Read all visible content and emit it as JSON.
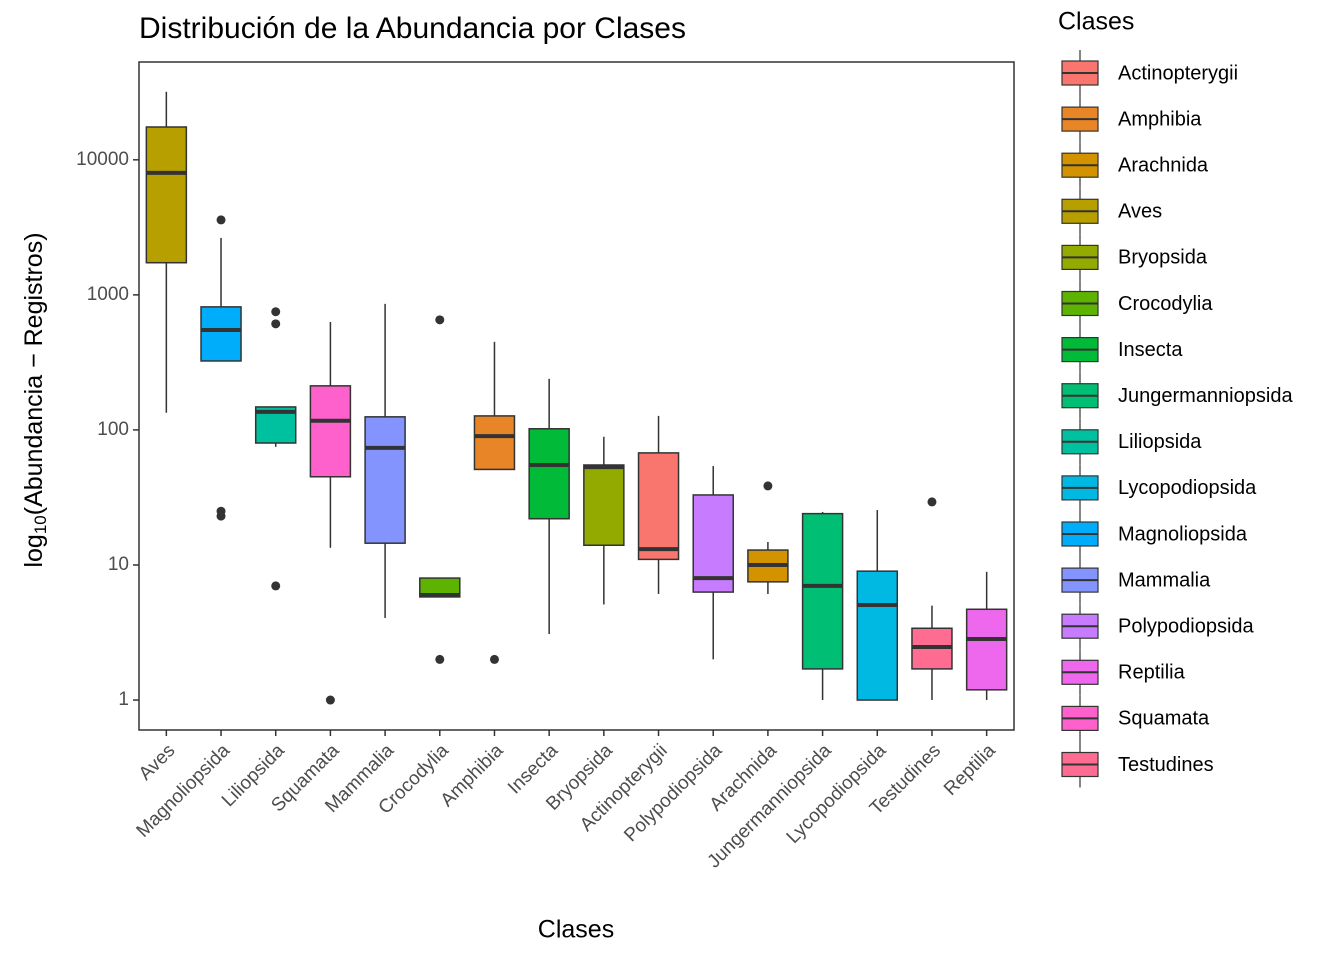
{
  "chart_data": {
    "type": "box",
    "title": "Distribución de la Abundancia por Clases",
    "x_label": "Clases",
    "y_label_parts": [
      "log",
      "10",
      "(Abundancia − Registros)"
    ],
    "log_scale": true,
    "ylim": [
      0.6,
      53000
    ],
    "yticks": [
      1,
      10,
      100,
      1000,
      10000
    ],
    "legend": {
      "title": "Clases",
      "position": "right",
      "entries": [
        {
          "name": "Actinopterygii",
          "color": "#F8766D"
        },
        {
          "name": "Amphibia",
          "color": "#E88526"
        },
        {
          "name": "Arachnida",
          "color": "#D39200"
        },
        {
          "name": "Aves",
          "color": "#B79F00"
        },
        {
          "name": "Bryopsida",
          "color": "#93AA00"
        },
        {
          "name": "Crocodylia",
          "color": "#5EB300"
        },
        {
          "name": "Insecta",
          "color": "#00BA38"
        },
        {
          "name": "Jungermanniopsida",
          "color": "#00BF74"
        },
        {
          "name": "Liliopsida",
          "color": "#00C19F"
        },
        {
          "name": "Lycopodiopsida",
          "color": "#00B9E3"
        },
        {
          "name": "Magnoliopsida",
          "color": "#00ADFA"
        },
        {
          "name": "Mammalia",
          "color": "#8494FF"
        },
        {
          "name": "Polypodiopsida",
          "color": "#C77CFF"
        },
        {
          "name": "Reptilia",
          "color": "#ED68ED"
        },
        {
          "name": "Squamata",
          "color": "#FF61CC"
        },
        {
          "name": "Testudines",
          "color": "#FF6C91"
        }
      ]
    },
    "categories": [
      "Aves",
      "Magnoliopsida",
      "Liliopsida",
      "Squamata",
      "Mammalia",
      "Crocodylia",
      "Amphibia",
      "Insecta",
      "Bryopsida",
      "Actinopterygii",
      "Polypodiopsida",
      "Arachnida",
      "Jungermanniopsida",
      "Lycopodiopsida",
      "Testudines",
      "Reptilia"
    ],
    "boxes": [
      {
        "min": 134,
        "q1": 1730,
        "median": 8000,
        "q3": 17500,
        "max": 31900,
        "outliers": []
      },
      {
        "min": 324,
        "q1": 324,
        "median": 550,
        "q3": 815,
        "max": 2640,
        "outliers": [
          3590,
          25,
          23
        ]
      },
      {
        "min": 75,
        "q1": 80,
        "median": 136,
        "q3": 148,
        "max": 148,
        "outliers": [
          750,
          610,
          7
        ]
      },
      {
        "min": 13.4,
        "q1": 45,
        "median": 117,
        "q3": 212,
        "max": 630,
        "outliers": [
          1
        ]
      },
      {
        "min": 4.05,
        "q1": 14.5,
        "median": 73.6,
        "q3": 125,
        "max": 858,
        "outliers": []
      },
      {
        "min": 5.8,
        "q1": 5.8,
        "median": 6,
        "q3": 8,
        "max": 8,
        "outliers": [
          653,
          2
        ]
      },
      {
        "min": 51,
        "q1": 51,
        "median": 90,
        "q3": 127,
        "max": 449,
        "outliers": [
          2
        ]
      },
      {
        "min": 3.08,
        "q1": 22,
        "median": 55,
        "q3": 102,
        "max": 239,
        "outliers": []
      },
      {
        "min": 5.1,
        "q1": 14,
        "median": 53,
        "q3": 55,
        "max": 89,
        "outliers": []
      },
      {
        "min": 6.1,
        "q1": 11,
        "median": 13.1,
        "q3": 67.6,
        "max": 127,
        "outliers": []
      },
      {
        "min": 2,
        "q1": 6.3,
        "median": 8,
        "q3": 33,
        "max": 54,
        "outliers": []
      },
      {
        "min": 6.1,
        "q1": 7.5,
        "median": 10,
        "q3": 12.9,
        "max": 14.8,
        "outliers": [
          38.5
        ]
      },
      {
        "min": 1,
        "q1": 1.7,
        "median": 7,
        "q3": 24,
        "max": 24.7,
        "outliers": []
      },
      {
        "min": 1,
        "q1": 1,
        "median": 5.06,
        "q3": 9,
        "max": 25.5,
        "outliers": []
      },
      {
        "min": 1,
        "q1": 1.7,
        "median": 2.47,
        "q3": 3.4,
        "max": 5,
        "outliers": [
          29.3
        ]
      },
      {
        "min": 1,
        "q1": 1.19,
        "median": 2.83,
        "q3": 4.7,
        "max": 8.9,
        "outliers": []
      }
    ]
  }
}
